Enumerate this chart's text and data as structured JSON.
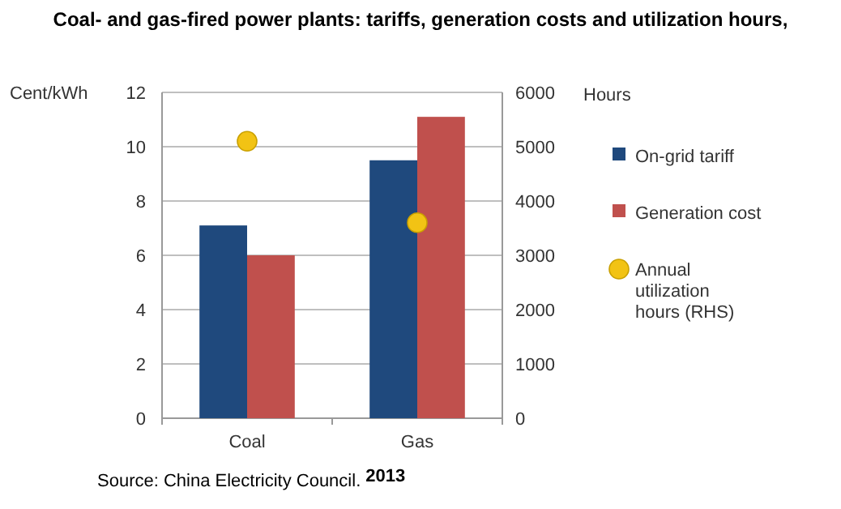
{
  "chart_data": {
    "type": "bar",
    "title": "Coal- and gas-fired power plants: tariffs, generation costs and utilization hours,",
    "ylabel": "Cent/kWh",
    "y2label": "Hours",
    "categories": [
      "Coal",
      "Gas"
    ],
    "series": [
      {
        "name": "On-grid tariff",
        "color": "#1f497d",
        "values": [
          7.1,
          9.5
        ]
      },
      {
        "name": "Generation cost",
        "color": "#c0504d",
        "values": [
          6.0,
          11.1
        ]
      },
      {
        "name": "Annual utilization hours (RHS)",
        "type": "scatter",
        "axis": "y2",
        "color": "#f2c314",
        "x": [
          "Coal",
          "Gas"
        ],
        "values": [
          5100,
          3600
        ]
      }
    ],
    "ylim": [
      0,
      12
    ],
    "yticks": [
      0,
      2,
      4,
      6,
      8,
      10,
      12
    ],
    "y2lim": [
      0,
      6000
    ],
    "y2ticks": [
      0,
      1000,
      2000,
      3000,
      4000,
      5000,
      6000
    ],
    "grid": "y",
    "legend": "right",
    "marker": "circle",
    "annotations": [
      "Source: China Electricity Council.",
      "2013"
    ]
  }
}
